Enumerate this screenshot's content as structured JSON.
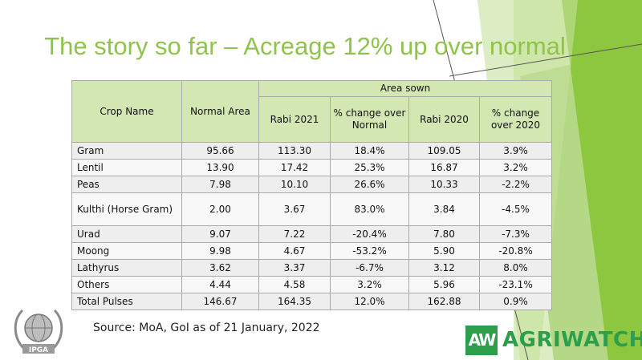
{
  "title": "The story so far – Acreage 12% up over normal",
  "table": {
    "header": {
      "crop_name": "Crop Name",
      "normal_area": "Normal Area",
      "area_sown": "Area sown",
      "rabi_2021": "Rabi 2021",
      "pct_change_normal": "% change over Normal",
      "rabi_2020": "Rabi 2020",
      "pct_change_2020": "% change over 2020"
    },
    "rows": [
      {
        "crop": "Gram",
        "normal": "95.66",
        "rabi2021": "113.30",
        "chg_normal": "18.4%",
        "rabi2020": "109.05",
        "chg_2020": "3.9%"
      },
      {
        "crop": "Lentil",
        "normal": "13.90",
        "rabi2021": "17.42",
        "chg_normal": "25.3%",
        "rabi2020": "16.87",
        "chg_2020": "3.2%"
      },
      {
        "crop": "Peas",
        "normal": "7.98",
        "rabi2021": "10.10",
        "chg_normal": "26.6%",
        "rabi2020": "10.33",
        "chg_2020": "-2.2%"
      },
      {
        "crop": "Kulthi (Horse Gram)",
        "normal": "2.00",
        "rabi2021": "3.67",
        "chg_normal": "83.0%",
        "rabi2020": "3.84",
        "chg_2020": "-4.5%"
      },
      {
        "crop": "Urad",
        "normal": "9.07",
        "rabi2021": "7.22",
        "chg_normal": "-20.4%",
        "rabi2020": "7.80",
        "chg_2020": "-7.3%"
      },
      {
        "crop": "Moong",
        "normal": "9.98",
        "rabi2021": "4.67",
        "chg_normal": "-53.2%",
        "rabi2020": "5.90",
        "chg_2020": "-20.8%"
      },
      {
        "crop": "Lathyrus",
        "normal": "3.62",
        "rabi2021": "3.37",
        "chg_normal": "-6.7%",
        "rabi2020": "3.12",
        "chg_2020": "8.0%"
      },
      {
        "crop": "Others",
        "normal": "4.44",
        "rabi2021": "4.58",
        "chg_normal": "3.2%",
        "rabi2020": "5.96",
        "chg_2020": "-23.1%"
      },
      {
        "crop": "Total Pulses",
        "normal": "146.67",
        "rabi2021": "164.35",
        "chg_normal": "12.0%",
        "rabi2020": "162.88",
        "chg_2020": "0.9%"
      }
    ]
  },
  "source": "Source: MoA, GoI as of 21 January, 2022",
  "logos": {
    "ipga_text": "IPGA",
    "agriwatch_mark": "AW",
    "agriwatch_text": "AGRIWATCH"
  },
  "colors": {
    "title": "#8fc34a",
    "header_bg": "#d3e7b3",
    "decor_green_dark": "#8dc63f",
    "decor_green_light": "#c6e19b",
    "agriwatch_green": "#2d9e4a"
  }
}
